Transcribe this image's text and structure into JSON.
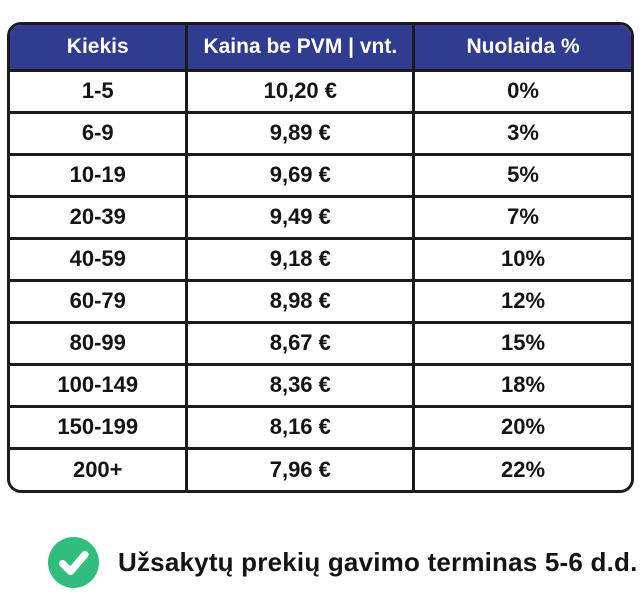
{
  "colors": {
    "header_bg": "#2F3C90",
    "header_text": "#FFFFFF",
    "border": "#1B1B1B",
    "cell_text": "#141414",
    "check_green": "#2FBE7D",
    "check_mark": "#FFFFFF",
    "background": "#FFFFFF"
  },
  "table": {
    "columns": [
      "Kiekis",
      "Kaina be PVM | vnt.",
      "Nuolaida %"
    ],
    "rows": [
      [
        "1-5",
        "10,20 €",
        "0%"
      ],
      [
        "6-9",
        "9,89 €",
        "3%"
      ],
      [
        "10-19",
        "9,69 €",
        "5%"
      ],
      [
        "20-39",
        "9,49 €",
        "7%"
      ],
      [
        "40-59",
        "9,18 €",
        "10%"
      ],
      [
        "60-79",
        "8,98 €",
        "12%"
      ],
      [
        "80-99",
        "8,67 €",
        "15%"
      ],
      [
        "100-149",
        "8,36 €",
        "18%"
      ],
      [
        "150-199",
        "8,16 €",
        "20%"
      ],
      [
        "200+",
        "7,96 €",
        "22%"
      ]
    ]
  },
  "footer": {
    "icon": "check-circle",
    "note": "Užsakytų prekių gavimo terminas 5-6 d.d."
  },
  "chart_data": {
    "type": "table",
    "title": "",
    "columns": [
      "Kiekis",
      "Kaina be PVM | vnt.",
      "Nuolaida %"
    ],
    "quantity_tiers": [
      "1-5",
      "6-9",
      "10-19",
      "20-39",
      "40-59",
      "60-79",
      "80-99",
      "100-149",
      "150-199",
      "200+"
    ],
    "prices_eur_excl_vat": [
      10.2,
      9.89,
      9.69,
      9.49,
      9.18,
      8.98,
      8.67,
      8.36,
      8.16,
      7.96
    ],
    "discounts_pct": [
      0,
      3,
      5,
      7,
      10,
      12,
      15,
      18,
      20,
      22
    ],
    "annotations": [
      "Užsakytų prekių gavimo terminas 5-6 d.d."
    ]
  }
}
